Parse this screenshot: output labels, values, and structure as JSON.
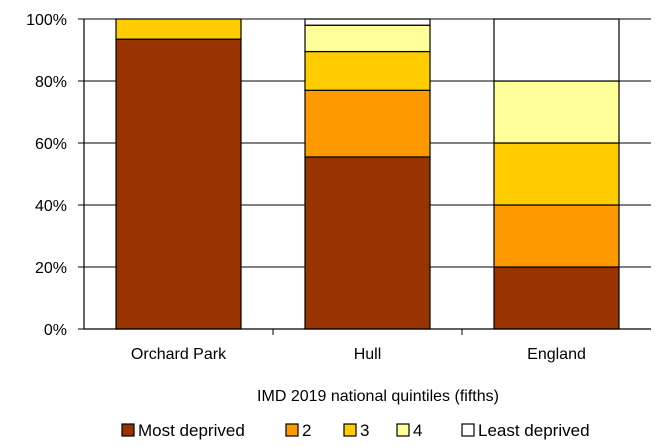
{
  "chart_data": {
    "type": "bar",
    "stacked": true,
    "categories": [
      "Orchard Park",
      "Hull",
      "England"
    ],
    "series": [
      {
        "name": "Most deprived",
        "color": "#993300",
        "values": [
          93.5,
          55.5,
          20
        ]
      },
      {
        "name": "2",
        "color": "#FF9900",
        "values": [
          0,
          21.5,
          20
        ]
      },
      {
        "name": "3",
        "color": "#FFCC00",
        "values": [
          6.5,
          12.5,
          20
        ]
      },
      {
        "name": "4",
        "color": "#FFFF99",
        "values": [
          0,
          8.5,
          20
        ]
      },
      {
        "name": "Least deprived",
        "color": "#FFFFFF",
        "values": [
          0,
          2,
          20
        ]
      }
    ],
    "xlabel": "IMD 2019 national quintiles (fifths)",
    "ylabel": "",
    "ylim": [
      0,
      100
    ],
    "yticks": [
      "0%",
      "20%",
      "40%",
      "60%",
      "80%",
      "100%"
    ],
    "grid": true,
    "legend_position": "bottom"
  }
}
